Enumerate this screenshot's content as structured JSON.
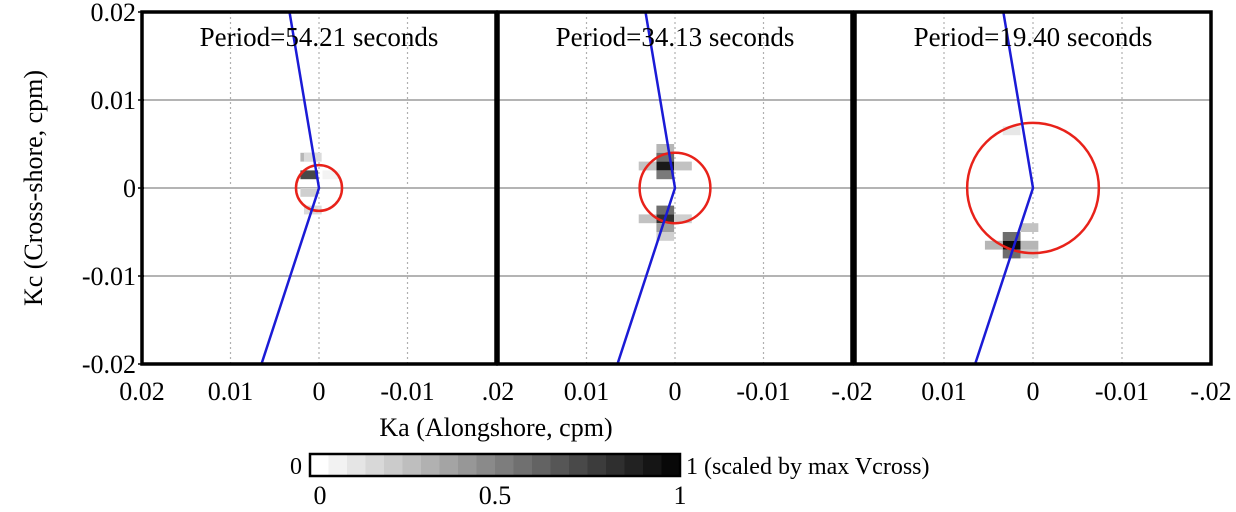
{
  "chart_data": {
    "type": "heatmap",
    "ylabel": "Kc (Cross-shore, cpm)",
    "xlabel": "Ka (Alongshore, cpm)",
    "ylim": [
      -0.02,
      0.02
    ],
    "xlim": [
      0.02,
      -0.02
    ],
    "y_ticks": [
      "0.02",
      "0.01",
      "0",
      "-0.01",
      "-0.02"
    ],
    "y_tick_values": [
      0.02,
      0.01,
      0,
      -0.01,
      -0.02
    ],
    "panels": [
      {
        "title": "Period=54.21 seconds",
        "x_ticks": [
          "0.02",
          "0.01",
          "0",
          "-0.01"
        ],
        "x_tick_values": [
          0.02,
          0.01,
          0,
          -0.01
        ],
        "circle_radius": 0.0026,
        "line": {
          "x": [
            0.005,
            0,
            0.0065
          ],
          "y": [
            0.03,
            0,
            -0.02
          ]
        },
        "cells": [
          {
            "ka": 0.0011,
            "kc": 0.0035,
            "v": 0.3
          },
          {
            "ka": 0.0011,
            "kc": 0.0015,
            "v": 0.75
          },
          {
            "ka": 0.0011,
            "kc": -0.0005,
            "v": 0.2
          },
          {
            "ka": 0.0007,
            "kc": -0.0025,
            "v": 0.15
          },
          {
            "ka": 0.0007,
            "kc": 0.0035,
            "v": 0.15
          },
          {
            "ka": -0.0014,
            "kc": 0.0015,
            "v": 0.05
          }
        ]
      },
      {
        "title": "Period=34.13 seconds",
        "x_ticks": [
          ".02",
          "0.01",
          "0",
          "-0.01",
          "-.02"
        ],
        "x_tick_values": [
          0.02,
          0.01,
          0,
          -0.01,
          -0.02
        ],
        "circle_radius": 0.004,
        "line": {
          "x": [
            0.005,
            0,
            0.0065
          ],
          "y": [
            0.03,
            0,
            -0.02
          ]
        },
        "cells": [
          {
            "ka": 0.0011,
            "kc": 0.0045,
            "v": 0.3
          },
          {
            "ka": 0.0011,
            "kc": 0.0035,
            "v": 0.6
          },
          {
            "ka": 0.0011,
            "kc": 0.0025,
            "v": 0.95
          },
          {
            "ka": 0.0011,
            "kc": 0.0015,
            "v": 0.55
          },
          {
            "ka": 0.0011,
            "kc": -0.0025,
            "v": 0.6
          },
          {
            "ka": 0.0011,
            "kc": -0.0035,
            "v": 0.85
          },
          {
            "ka": 0.0011,
            "kc": -0.0045,
            "v": 0.4
          },
          {
            "ka": 0.0011,
            "kc": -0.0055,
            "v": 0.2
          },
          {
            "ka": 0.0031,
            "kc": 0.0025,
            "v": 0.25
          },
          {
            "ka": 0.0031,
            "kc": -0.0035,
            "v": 0.25
          },
          {
            "ka": -0.0009,
            "kc": 0.0025,
            "v": 0.25
          },
          {
            "ka": -0.0009,
            "kc": -0.0035,
            "v": 0.2
          }
        ]
      },
      {
        "title": "Period=19.40 seconds",
        "x_ticks": [
          "0.01",
          "0",
          "-0.01",
          "-.02"
        ],
        "x_tick_values": [
          0.01,
          0,
          -0.01,
          -0.02
        ],
        "circle_radius": 0.0074,
        "line": {
          "x": [
            0.005,
            0,
            0.0065
          ],
          "y": [
            0.03,
            0,
            -0.02
          ]
        },
        "cells": [
          {
            "ka": 0.0024,
            "kc": -0.0055,
            "v": 0.6
          },
          {
            "ka": 0.0024,
            "kc": -0.0065,
            "v": 1.0
          },
          {
            "ka": 0.0024,
            "kc": -0.0075,
            "v": 0.6
          },
          {
            "ka": 0.0044,
            "kc": -0.0065,
            "v": 0.3
          },
          {
            "ka": 0.0004,
            "kc": -0.0065,
            "v": 0.3
          },
          {
            "ka": 0.0004,
            "kc": -0.0045,
            "v": 0.25
          },
          {
            "ka": 0.0004,
            "kc": -0.0075,
            "v": 0.2
          },
          {
            "ka": 0.0024,
            "kc": 0.0065,
            "v": 0.1
          }
        ]
      }
    ],
    "colorbar": {
      "min_label": "0",
      "max_label": "1 (scaled by max Vcross)",
      "ticks": [
        "0",
        "0.5",
        "1"
      ],
      "tick_values": [
        0,
        0.5,
        1
      ],
      "steps": 20
    },
    "grid": true,
    "colors": {
      "circle": "#e8221a",
      "line": "#1b1bd6",
      "grid": "#b4b4b4"
    }
  }
}
